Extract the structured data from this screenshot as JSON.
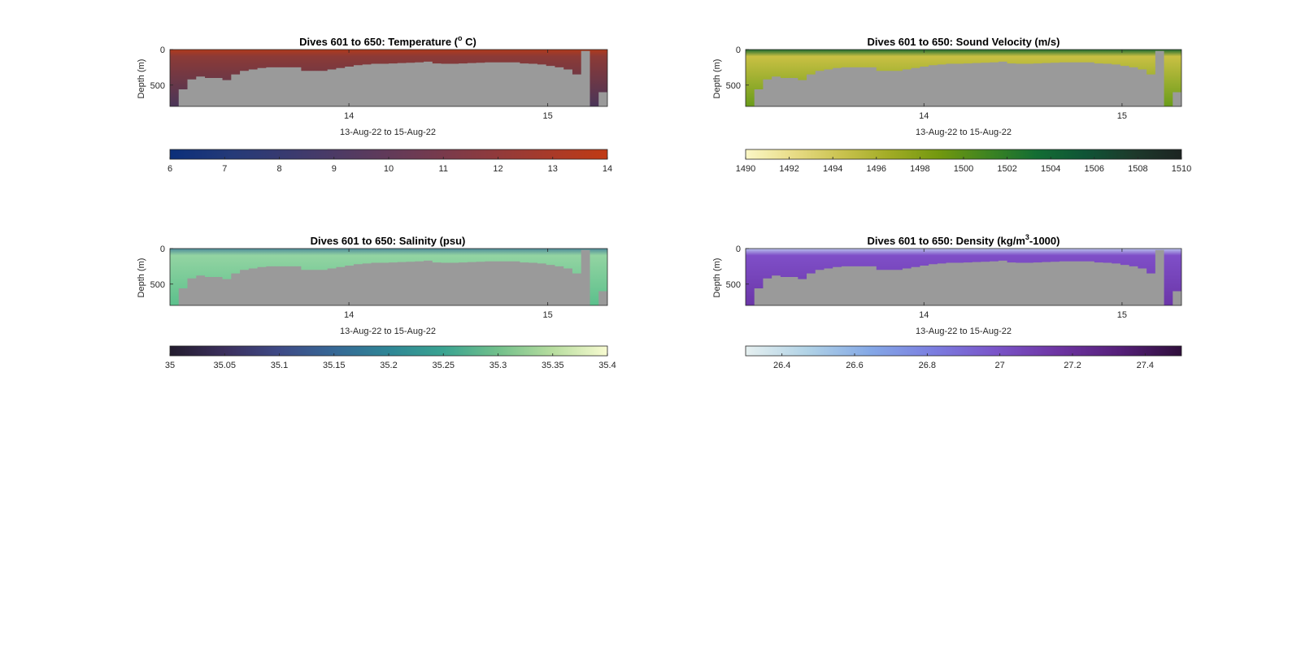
{
  "figure": {
    "background": "#ffffff",
    "land_color": "#9a9a9a"
  },
  "chart_data": [
    {
      "type": "heatmap",
      "key": "temperature",
      "title_parts": [
        "Dives 601 to 650: Temperature (",
        "o",
        " C)"
      ],
      "ylabel": "Depth (m)",
      "xlabel": "13-Aug-22 to 15-Aug-22",
      "x_tick_labels": [
        "14",
        "15"
      ],
      "y_tick_labels": [
        "0",
        "500"
      ],
      "ylim": [
        0,
        800
      ],
      "y_ticks": [
        0,
        500
      ],
      "x_range_days": [
        13.1,
        15.3
      ],
      "x_ticks_days": [
        14,
        15
      ],
      "colorbar": {
        "range": [
          6,
          14
        ],
        "tick_labels": [
          "6",
          "7",
          "8",
          "9",
          "10",
          "11",
          "12",
          "13",
          "14"
        ],
        "colors": [
          "#0b2f7a",
          "#253a78",
          "#3c3a6e",
          "#553a60",
          "#6e3a52",
          "#8a3a40",
          "#a63a2b",
          "#c03a14"
        ]
      },
      "profile_colors": {
        "surface": "#b23a1c",
        "mid": "#8c3a36",
        "deep": "#4a3558"
      }
    },
    {
      "type": "heatmap",
      "key": "sound_velocity",
      "title_parts": [
        "Dives 601 to 650: Sound Velocity (m/s)"
      ],
      "ylabel": "Depth (m)",
      "xlabel": "13-Aug-22 to 15-Aug-22",
      "x_tick_labels": [
        "14",
        "15"
      ],
      "y_tick_labels": [
        "0",
        "500"
      ],
      "ylim": [
        0,
        800
      ],
      "y_ticks": [
        0,
        500
      ],
      "x_range_days": [
        13.1,
        15.3
      ],
      "x_ticks_days": [
        14,
        15
      ],
      "colorbar": {
        "range": [
          1490,
          1510
        ],
        "tick_labels": [
          "1490",
          "1492",
          "1494",
          "1496",
          "1498",
          "1500",
          "1502",
          "1504",
          "1506",
          "1508",
          "1510"
        ],
        "colors": [
          "#fbf7c6",
          "#e8dc86",
          "#c9c24e",
          "#a0ab24",
          "#72980f",
          "#3e8421",
          "#136d33",
          "#0f5436",
          "#1d3a2b",
          "#1d2422"
        ]
      },
      "profile_colors": {
        "surface": "#1c6a30",
        "mid": "#c9c043",
        "deep": "#6a9c1a"
      }
    },
    {
      "type": "heatmap",
      "key": "salinity",
      "title_parts": [
        "Dives 601 to 650: Salinity (psu)"
      ],
      "ylabel": "Depth (m)",
      "xlabel": "13-Aug-22 to 15-Aug-22",
      "x_tick_labels": [
        "14",
        "15"
      ],
      "y_tick_labels": [
        "0",
        "500"
      ],
      "ylim": [
        0,
        800
      ],
      "y_ticks": [
        0,
        500
      ],
      "x_range_days": [
        13.1,
        15.3
      ],
      "x_ticks_days": [
        14,
        15
      ],
      "colorbar": {
        "range": [
          35,
          35.4
        ],
        "tick_labels": [
          "35",
          "35.05",
          "35.1",
          "35.15",
          "35.2",
          "35.25",
          "35.3",
          "35.35",
          "35.4"
        ],
        "colors": [
          "#231c2e",
          "#3b2f5d",
          "#3e4a86",
          "#366896",
          "#2f8696",
          "#3aa391",
          "#72c08b",
          "#b7dd9f",
          "#f8fbd1"
        ]
      },
      "profile_colors": {
        "surface": "#4d8a9a",
        "mid": "#93d4a2",
        "deep": "#5cc08c"
      }
    },
    {
      "type": "heatmap",
      "key": "density",
      "title_parts": [
        "Dives 601 to 650: Density (kg/m",
        "3",
        "-1000)"
      ],
      "ylabel": "Depth (m)",
      "xlabel": "13-Aug-22 to 15-Aug-22",
      "x_tick_labels": [
        "14",
        "15"
      ],
      "y_tick_labels": [
        "0",
        "500"
      ],
      "ylim": [
        0,
        800
      ],
      "y_ticks": [
        0,
        500
      ],
      "x_range_days": [
        13.1,
        15.3
      ],
      "x_ticks_days": [
        14,
        15
      ],
      "colorbar": {
        "range": [
          26.3,
          27.5
        ],
        "tick_labels": [
          "26.4",
          "26.6",
          "26.8",
          "27",
          "27.2",
          "27.4"
        ],
        "tick_values": [
          26.4,
          26.6,
          26.8,
          27.0,
          27.2,
          27.4
        ],
        "colors": [
          "#e6f0f0",
          "#b0d2e6",
          "#84a8e6",
          "#7b7ee0",
          "#7a55c9",
          "#6e35a3",
          "#56207a",
          "#2f0f3b"
        ]
      },
      "profile_colors": {
        "surface": "#b9c4ee",
        "mid": "#7f4fc8",
        "deep": "#6b36a8"
      }
    }
  ],
  "dive_bottom_depths_m": [
    800,
    560,
    420,
    380,
    400,
    400,
    430,
    350,
    300,
    280,
    260,
    250,
    250,
    250,
    250,
    300,
    300,
    300,
    280,
    260,
    240,
    220,
    210,
    200,
    200,
    195,
    190,
    185,
    180,
    170,
    195,
    200,
    200,
    195,
    190,
    185,
    180,
    180,
    180,
    180,
    195,
    200,
    210,
    230,
    250,
    280,
    350,
    20,
    800,
    600
  ]
}
